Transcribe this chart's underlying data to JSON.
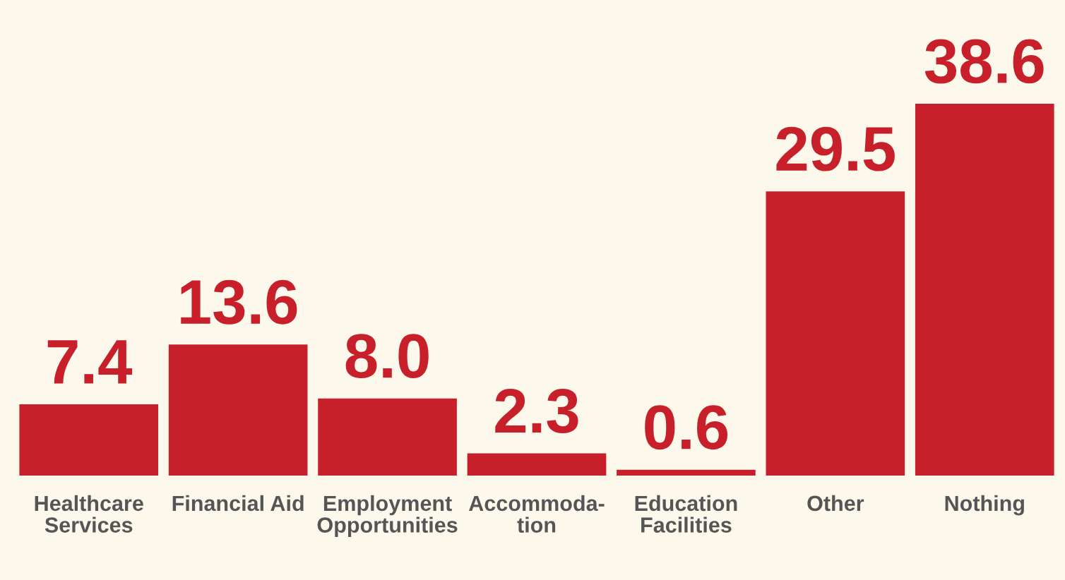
{
  "chart_data": {
    "type": "bar",
    "categories": [
      "Healthcare\nServices",
      "Financial Aid",
      "Employment\nOpportunities",
      "Accommoda-\ntion",
      "Education\nFacilities",
      "Other",
      "Nothing"
    ],
    "values": [
      7.4,
      13.6,
      8.0,
      2.3,
      0.6,
      29.5,
      38.6
    ],
    "color": "#c8202a",
    "value_labels": [
      "7.4",
      "13.6",
      "8.0",
      "2.3",
      "0.6",
      "29.5",
      "38.6"
    ],
    "grid": false,
    "legend": false
  }
}
